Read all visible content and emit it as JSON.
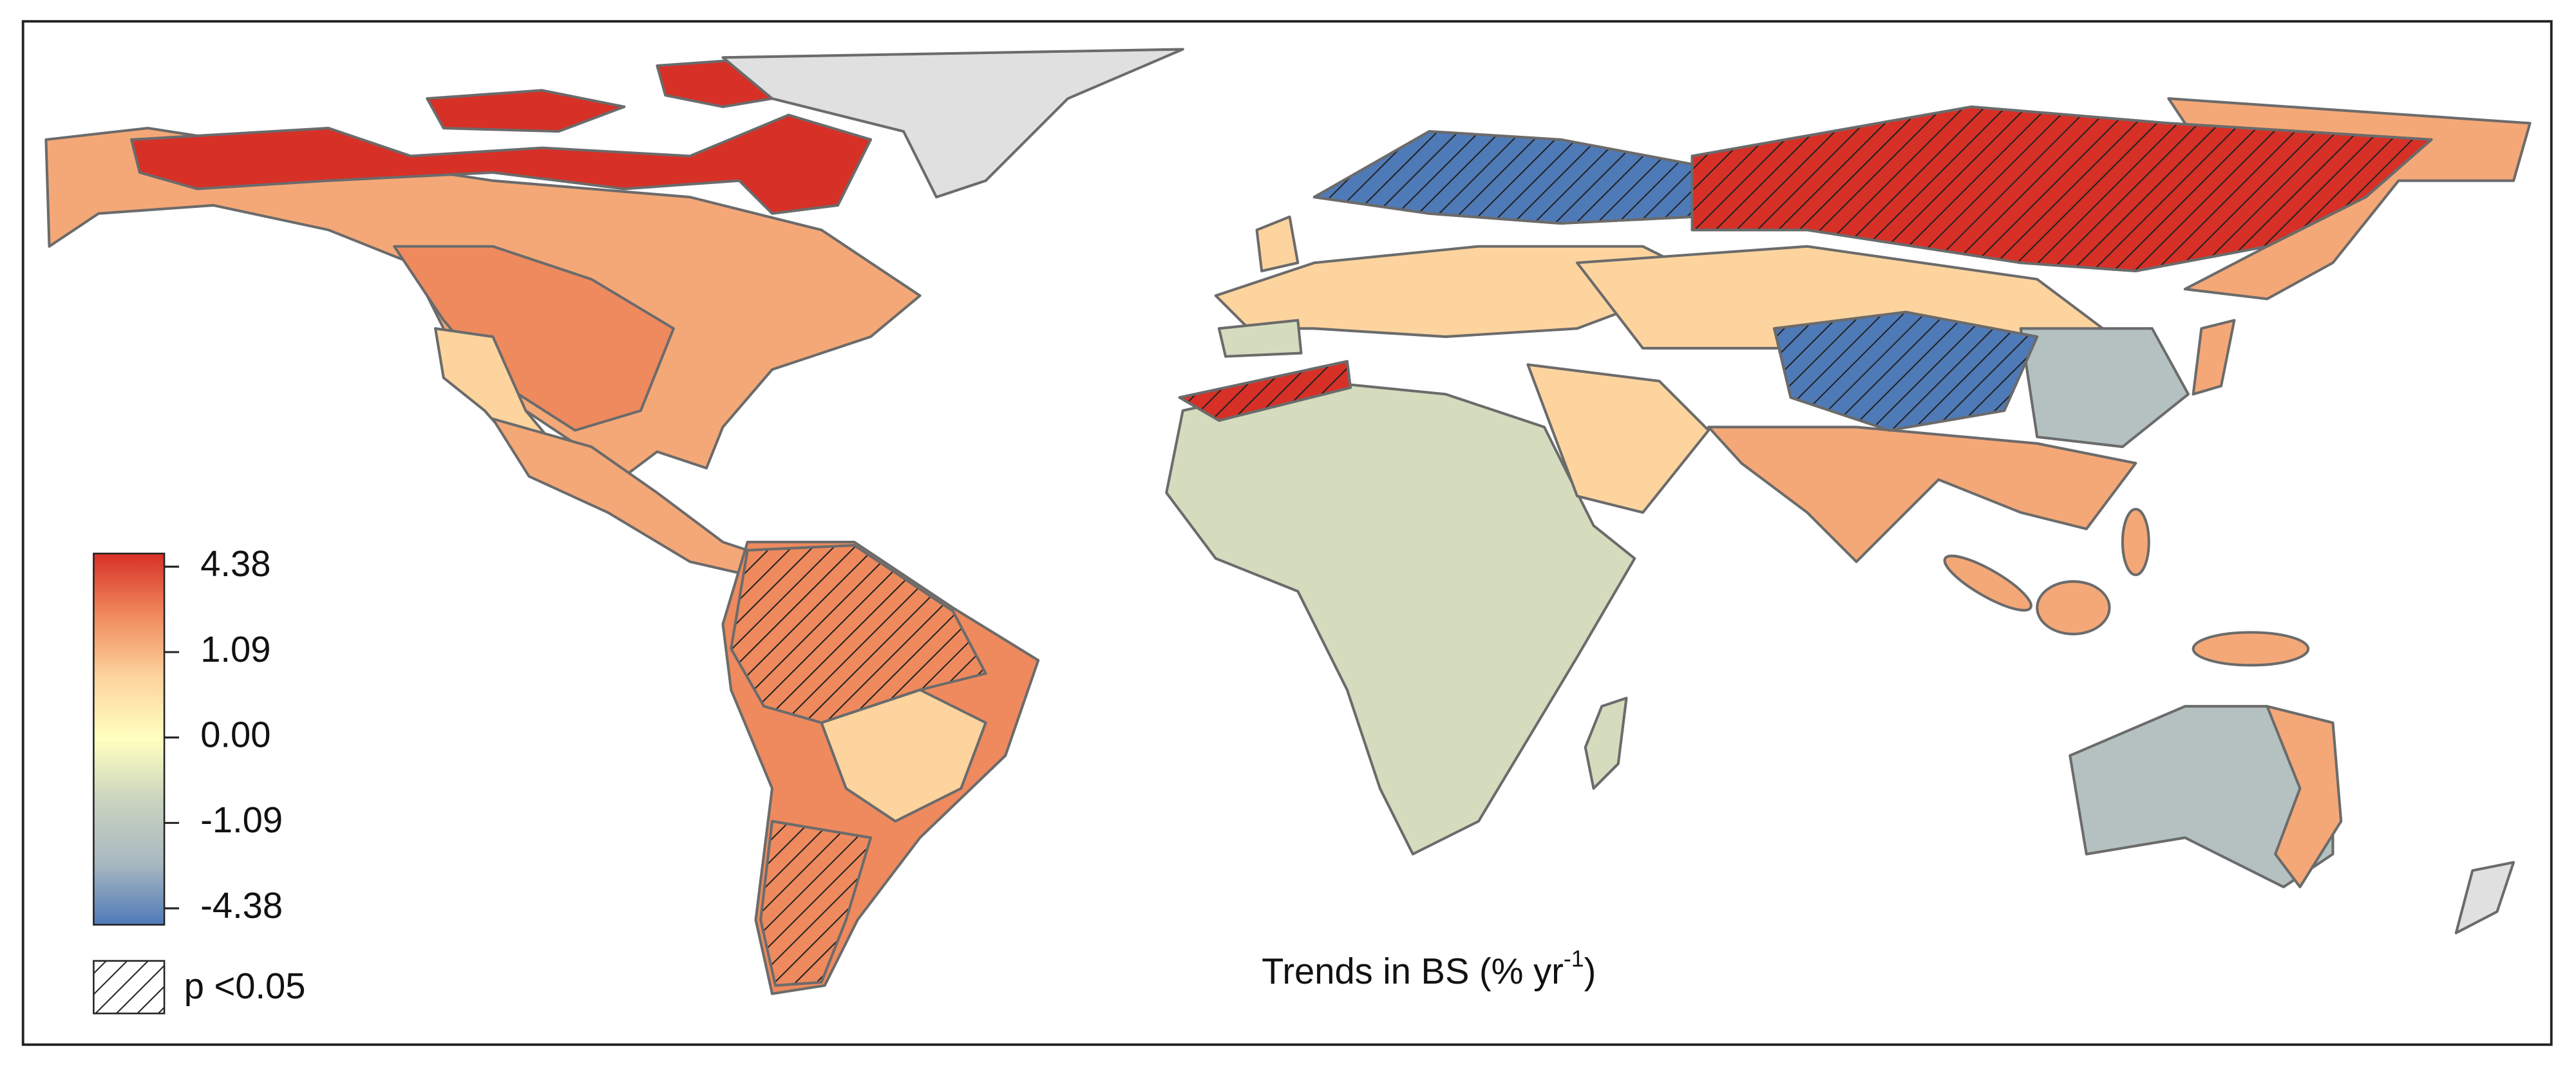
{
  "legend": {
    "colorbar": {
      "colors": [
        "#d73027",
        "#f08a5d",
        "#fdd49e",
        "#ffffbf",
        "#c9d3bf",
        "#a9b9c0",
        "#4f7ab8"
      ],
      "ticks": [
        4.38,
        1.09,
        {
          "value": 0,
          "label": "0.00"
        },
        -1.09,
        -4.38
      ]
    },
    "hatch_label": "p <0.05"
  },
  "caption": {
    "text": "Trends in BS (% yr",
    "superscript": "-1",
    "close": ")"
  }
}
